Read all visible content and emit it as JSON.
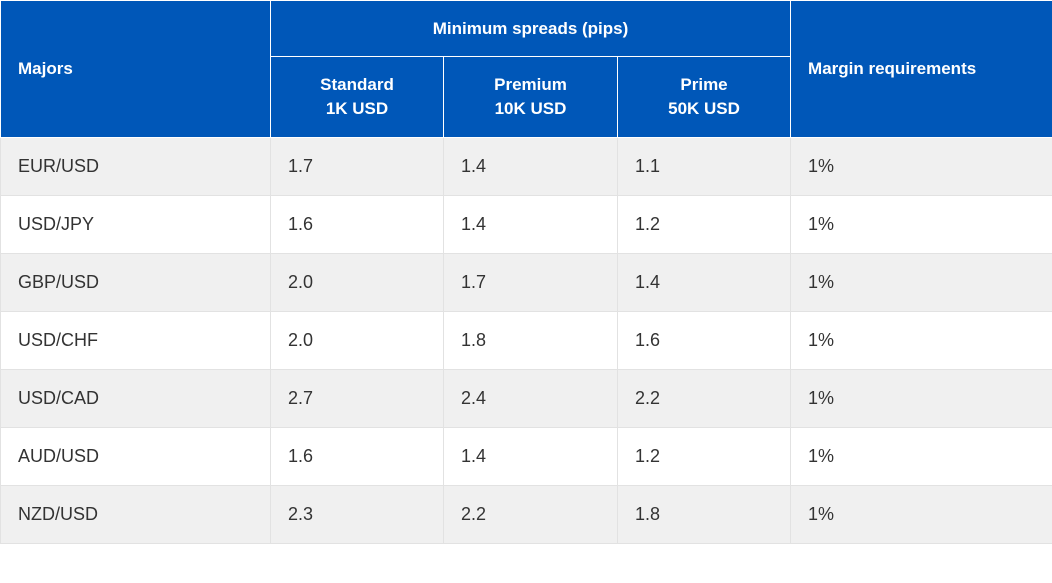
{
  "header": {
    "majors": "Majors",
    "group_title": "Minimum spreads (pips)",
    "margin": "Margin requirements",
    "tiers": [
      {
        "name": "Standard",
        "amount": "1K USD"
      },
      {
        "name": "Premium",
        "amount": "10K USD"
      },
      {
        "name": "Prime",
        "amount": "50K USD"
      }
    ]
  },
  "rows": [
    {
      "pair": "EUR/USD",
      "standard": "1.7",
      "premium": "1.4",
      "prime": "1.1",
      "margin": "1%"
    },
    {
      "pair": "USD/JPY",
      "standard": "1.6",
      "premium": "1.4",
      "prime": "1.2",
      "margin": "1%"
    },
    {
      "pair": "GBP/USD",
      "standard": "2.0",
      "premium": "1.7",
      "prime": "1.4",
      "margin": "1%"
    },
    {
      "pair": "USD/CHF",
      "standard": "2.0",
      "premium": "1.8",
      "prime": "1.6",
      "margin": "1%"
    },
    {
      "pair": "USD/CAD",
      "standard": "2.7",
      "premium": "2.4",
      "prime": "2.2",
      "margin": "1%"
    },
    {
      "pair": "AUD/USD",
      "standard": "1.6",
      "premium": "1.4",
      "prime": "1.2",
      "margin": "1%"
    },
    {
      "pair": "NZD/USD",
      "standard": "2.3",
      "premium": "2.2",
      "prime": "1.8",
      "margin": "1%"
    }
  ],
  "colors": {
    "header_bg": "#0057b8",
    "header_text": "#ffffff",
    "row_alt_bg": "#f0f0f0",
    "row_bg": "#ffffff",
    "body_text": "#333333"
  }
}
